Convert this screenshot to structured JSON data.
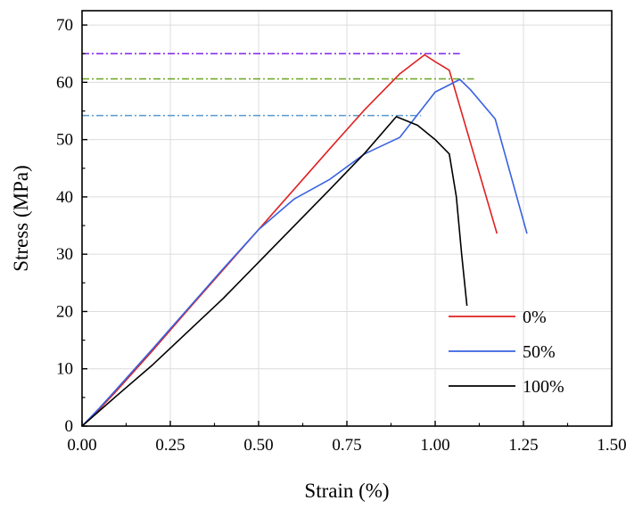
{
  "chart_data": {
    "type": "line",
    "title": "",
    "xlabel": "Strain (%)",
    "ylabel": "Stress  (MPa)",
    "xlim": [
      0,
      1.5
    ],
    "ylim": [
      0,
      72.5
    ],
    "xticks": [
      0,
      0.25,
      0.5,
      0.75,
      1.0,
      1.25,
      1.5
    ],
    "xtick_labels": [
      "0.00",
      "0.25",
      "0.50",
      "0.75",
      "1.00",
      "1.25",
      "1.50"
    ],
    "yticks": [
      0,
      10,
      20,
      30,
      40,
      50,
      60,
      70
    ],
    "ytick_labels": [
      "0",
      "10",
      "20",
      "30",
      "40",
      "50",
      "60",
      "70"
    ],
    "grid": true,
    "legend_position": "bottom-right",
    "series": [
      {
        "name": "0%",
        "color": "#e02020",
        "x": [
          0,
          0.05,
          0.1,
          0.2,
          0.3,
          0.4,
          0.5,
          0.6,
          0.7,
          0.8,
          0.9,
          0.97,
          1.0,
          1.04,
          1.175
        ],
        "y": [
          0,
          3,
          6.3,
          13.2,
          20.3,
          27.3,
          34.3,
          41.3,
          48.3,
          55.2,
          61.5,
          64.8,
          63.6,
          62.1,
          33.6
        ]
      },
      {
        "name": "50%",
        "color": "#3a62e0",
        "x": [
          0,
          0.05,
          0.1,
          0.2,
          0.3,
          0.4,
          0.5,
          0.6,
          0.7,
          0.8,
          0.9,
          1.0,
          1.07,
          1.1,
          1.17,
          1.26
        ],
        "y": [
          0,
          3.2,
          6.6,
          13.5,
          20.5,
          27.5,
          34.3,
          39.6,
          43.0,
          47.5,
          50.4,
          58.3,
          60.5,
          58.7,
          53.6,
          33.6
        ]
      },
      {
        "name": "100%",
        "color": "#000000",
        "x": [
          0,
          0.05,
          0.1,
          0.2,
          0.3,
          0.4,
          0.5,
          0.6,
          0.7,
          0.8,
          0.89,
          0.95,
          1.0,
          1.04,
          1.06,
          1.075,
          1.09
        ],
        "y": [
          0,
          2.7,
          5.4,
          10.7,
          16.5,
          22.3,
          28.6,
          34.9,
          41.2,
          47.6,
          54.0,
          52.5,
          50.0,
          47.5,
          40.0,
          30.0,
          21.0
        ]
      }
    ],
    "reference_lines": [
      {
        "y": 65.0,
        "x_start": 0,
        "x_end": 1.07,
        "color": "#8a35e8",
        "style": "dashdot"
      },
      {
        "y": 60.6,
        "x_start": 0,
        "x_end": 1.11,
        "color": "#6aa320",
        "style": "dashdot"
      },
      {
        "y": 54.2,
        "x_start": 0,
        "x_end": 0.96,
        "color": "#5a9ad0",
        "style": "dashdot"
      }
    ]
  }
}
